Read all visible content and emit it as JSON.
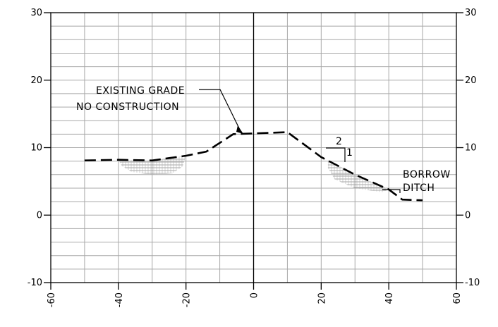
{
  "chart_data": {
    "type": "cross-section",
    "xlim": [
      -60,
      60
    ],
    "ylim": [
      -10,
      30
    ],
    "x_ticks": [
      "-60",
      "-40",
      "-20",
      "0",
      "20",
      "40",
      "60"
    ],
    "y_ticks_left": [
      "30",
      "20",
      "10",
      "0",
      "-10"
    ],
    "y_ticks_right": [
      "30",
      "20",
      "10",
      "0",
      "-10"
    ],
    "grid": true,
    "grid_minor_step_x": 10,
    "grid_minor_step_y": 2,
    "ground_profile": [
      {
        "x": -50,
        "y": 8.1
      },
      {
        "x": -40,
        "y": 8.2
      },
      {
        "x": -30,
        "y": 8.1
      },
      {
        "x": -20,
        "y": 8.8
      },
      {
        "x": -14,
        "y": 9.4
      },
      {
        "x": -6,
        "y": 12.0
      },
      {
        "x": 0,
        "y": 12.1
      },
      {
        "x": 10,
        "y": 12.3
      },
      {
        "x": 20,
        "y": 8.6
      },
      {
        "x": 30,
        "y": 6.0
      },
      {
        "x": 40,
        "y": 3.8
      },
      {
        "x": 44,
        "y": 2.3
      },
      {
        "x": 50,
        "y": 2.2
      }
    ],
    "hatched_area_left": [
      {
        "x": -40,
        "y": 8.2
      },
      {
        "x": -30,
        "y": 8.1
      },
      {
        "x": -20,
        "y": 8.8
      },
      {
        "x": -21,
        "y": 7.2
      },
      {
        "x": -24,
        "y": 6.2
      },
      {
        "x": -30,
        "y": 6.0
      },
      {
        "x": -36,
        "y": 6.4
      },
      {
        "x": -39,
        "y": 7.3
      }
    ],
    "hatched_area_right": [
      {
        "x": 22,
        "y": 8.2
      },
      {
        "x": 30,
        "y": 6.0
      },
      {
        "x": 40,
        "y": 3.8
      },
      {
        "x": 38,
        "y": 3.4
      },
      {
        "x": 30,
        "y": 4.0
      },
      {
        "x": 24,
        "y": 5.3
      },
      {
        "x": 22,
        "y": 7.0
      }
    ],
    "annotations": {
      "existing_grade_line1": "EXISTING GRADE",
      "existing_grade_line2": "NO CONSTRUCTION",
      "slope_run": "2",
      "slope_rise": "1",
      "borrow_line1": "BORROW",
      "borrow_line2": "DITCH"
    }
  },
  "colors": {
    "grid": "#a8a8a8",
    "axis": "#000000",
    "profile": "#000000",
    "hatch": "#8a8a8a",
    "background": "#ffffff"
  }
}
